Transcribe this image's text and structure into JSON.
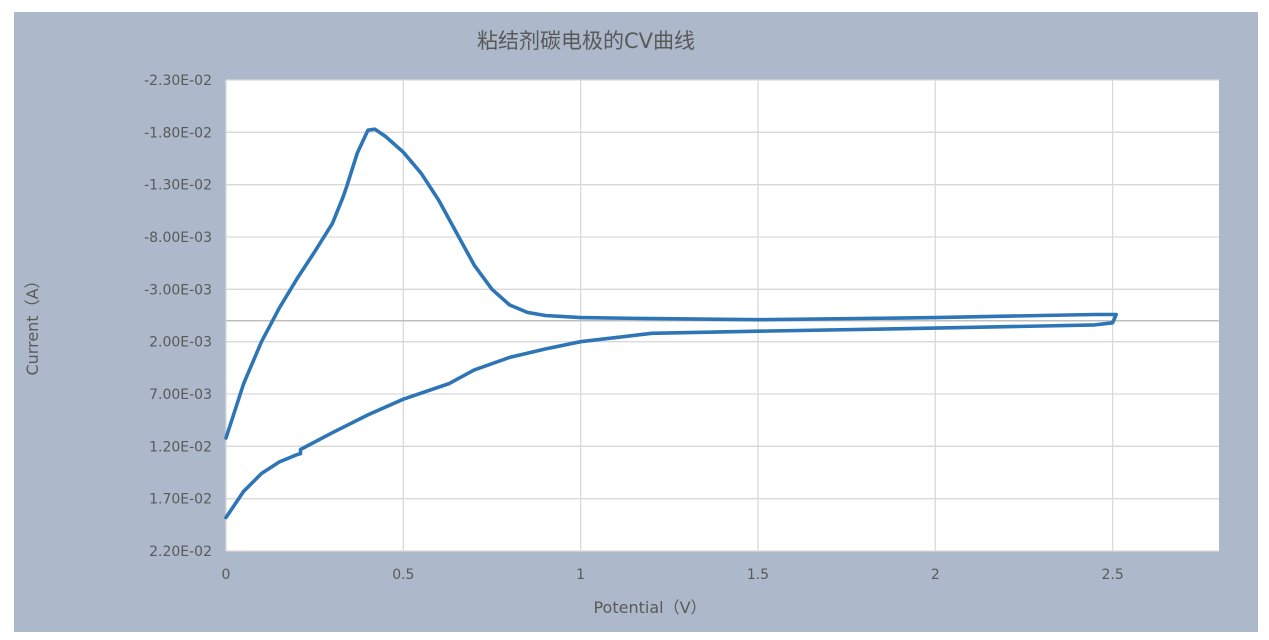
{
  "chart_data": {
    "type": "line",
    "title": "粘结剂碳电极的CV曲线",
    "xlabel": "Potential（V）",
    "ylabel": "Current（A）",
    "xlim": [
      0,
      2.8
    ],
    "ylim": [
      -0.023,
      0.022
    ],
    "y_reversed": true,
    "grid": true,
    "x_tick_values": [
      0,
      0.5,
      1,
      1.5,
      2,
      2.5
    ],
    "x_tick_labels": [
      "0",
      "0.5",
      "1",
      "1.5",
      "2",
      "2.5"
    ],
    "y_tick_values": [
      -0.023,
      -0.018,
      -0.013,
      -0.008,
      -0.003,
      0.002,
      0.007,
      0.012,
      0.017,
      0.022
    ],
    "y_tick_labels": [
      "-2.30E-02",
      "-1.80E-02",
      "-1.30E-02",
      "-8.00E-03",
      "-3.00E-03",
      "2.00E-03",
      "7.00E-03",
      "1.20E-02",
      "1.70E-02",
      "2.20E-02"
    ],
    "series": [
      {
        "color": "#2e75b6",
        "x": [
          0.0,
          0.05,
          0.1,
          0.15,
          0.2,
          0.25,
          0.3,
          0.33,
          0.34,
          0.37,
          0.4,
          0.42,
          0.45,
          0.5,
          0.55,
          0.6,
          0.65,
          0.7,
          0.75,
          0.8,
          0.85,
          0.9,
          1.0,
          1.2,
          1.5,
          2.0,
          2.3,
          2.45,
          2.51,
          2.5,
          2.45,
          2.3,
          2.0,
          1.5,
          1.2,
          1.0,
          0.9,
          0.8,
          0.7,
          0.64,
          0.63,
          0.5,
          0.4,
          0.3,
          0.21,
          0.21,
          0.2,
          0.15,
          0.1,
          0.05,
          0.02,
          0.0
        ],
        "y": [
          0.0112,
          0.006,
          0.002,
          -0.0012,
          -0.004,
          -0.0066,
          -0.0093,
          -0.0118,
          -0.0128,
          -0.016,
          -0.0182,
          -0.0183,
          -0.0176,
          -0.0161,
          -0.0141,
          -0.0115,
          -0.0084,
          -0.0053,
          -0.003,
          -0.0015,
          -0.0008,
          -0.0005,
          -0.0003,
          -0.0002,
          -0.0001,
          -0.0003,
          -0.0005,
          -0.0006,
          -0.0006,
          0.0002,
          0.0004,
          0.0005,
          0.0007,
          0.001,
          0.0012,
          0.002,
          0.0027,
          0.0035,
          0.0047,
          0.0058,
          0.006,
          0.0075,
          0.009,
          0.0107,
          0.0123,
          0.0127,
          0.0128,
          0.0135,
          0.0146,
          0.0163,
          0.0178,
          0.0188
        ]
      }
    ]
  }
}
